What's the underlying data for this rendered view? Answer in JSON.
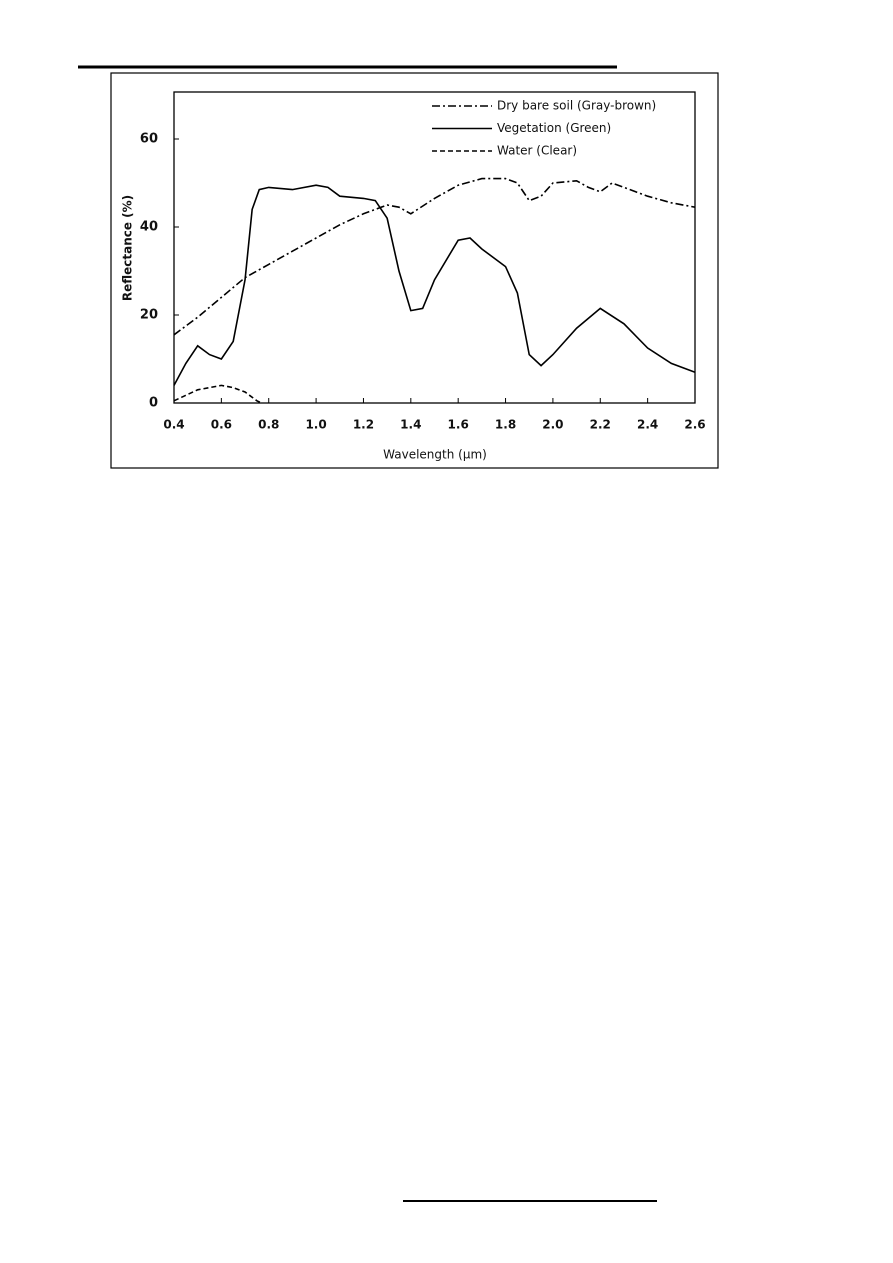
{
  "chart_data": {
    "type": "line",
    "xlabel": "Wavelength (μm)",
    "ylabel": "Reflectance (%)",
    "xlim": [
      0.4,
      2.6
    ],
    "ylim": [
      0,
      70
    ],
    "xticks": [
      0.4,
      0.6,
      0.8,
      {
        "value": 1.0,
        "label": "1.0"
      },
      1.2,
      1.4,
      1.6,
      1.8,
      {
        "value": 2.0,
        "label": "2.0"
      },
      2.2,
      2.4,
      2.6
    ],
    "yticks": [
      0,
      20,
      40,
      60
    ],
    "legend": "top-right",
    "series": [
      {
        "name": "Dry bare soil (Gray-brown)",
        "color": "#000",
        "dash": "dash-dot",
        "x": [
          0.4,
          0.5,
          0.6,
          0.7,
          0.8,
          0.9,
          1.0,
          1.1,
          1.2,
          1.3,
          1.35,
          1.4,
          1.5,
          1.6,
          1.7,
          1.8,
          1.85,
          1.9,
          1.95,
          2.0,
          2.1,
          2.15,
          2.2,
          2.25,
          2.4,
          2.5,
          2.6
        ],
        "values": [
          15.5,
          19.5,
          24,
          28.5,
          31.5,
          34.5,
          37.5,
          40.5,
          43,
          45,
          44.5,
          43,
          46.5,
          49.5,
          51,
          51,
          50,
          46,
          47,
          50,
          50.5,
          49,
          48,
          50,
          47,
          45.5,
          44.5
        ]
      },
      {
        "name": "Vegetation (Green)",
        "color": "#000",
        "dash": "solid",
        "x": [
          0.4,
          0.45,
          0.5,
          0.55,
          0.6,
          0.65,
          0.7,
          0.73,
          0.76,
          0.8,
          0.9,
          1.0,
          1.05,
          1.1,
          1.2,
          1.25,
          1.3,
          1.35,
          1.4,
          1.45,
          1.5,
          1.6,
          1.65,
          1.7,
          1.8,
          1.85,
          1.9,
          1.95,
          2.0,
          2.1,
          2.2,
          2.3,
          2.4,
          2.5,
          2.6
        ],
        "values": [
          4,
          9,
          13,
          11,
          10,
          14,
          28,
          44,
          48.5,
          49,
          48.5,
          49.5,
          49,
          47,
          46.5,
          46,
          42,
          30,
          21,
          21.5,
          28,
          37,
          37.5,
          35,
          31,
          25,
          11,
          8.5,
          11,
          17,
          21.5,
          18,
          12.5,
          9,
          7
        ]
      },
      {
        "name": "Water (Clear)",
        "color": "#000",
        "dash": "dashed",
        "x": [
          0.4,
          0.5,
          0.6,
          0.65,
          0.7,
          0.75,
          0.77
        ],
        "values": [
          0.5,
          3,
          4,
          3.5,
          2.5,
          0.5,
          0
        ]
      }
    ]
  }
}
